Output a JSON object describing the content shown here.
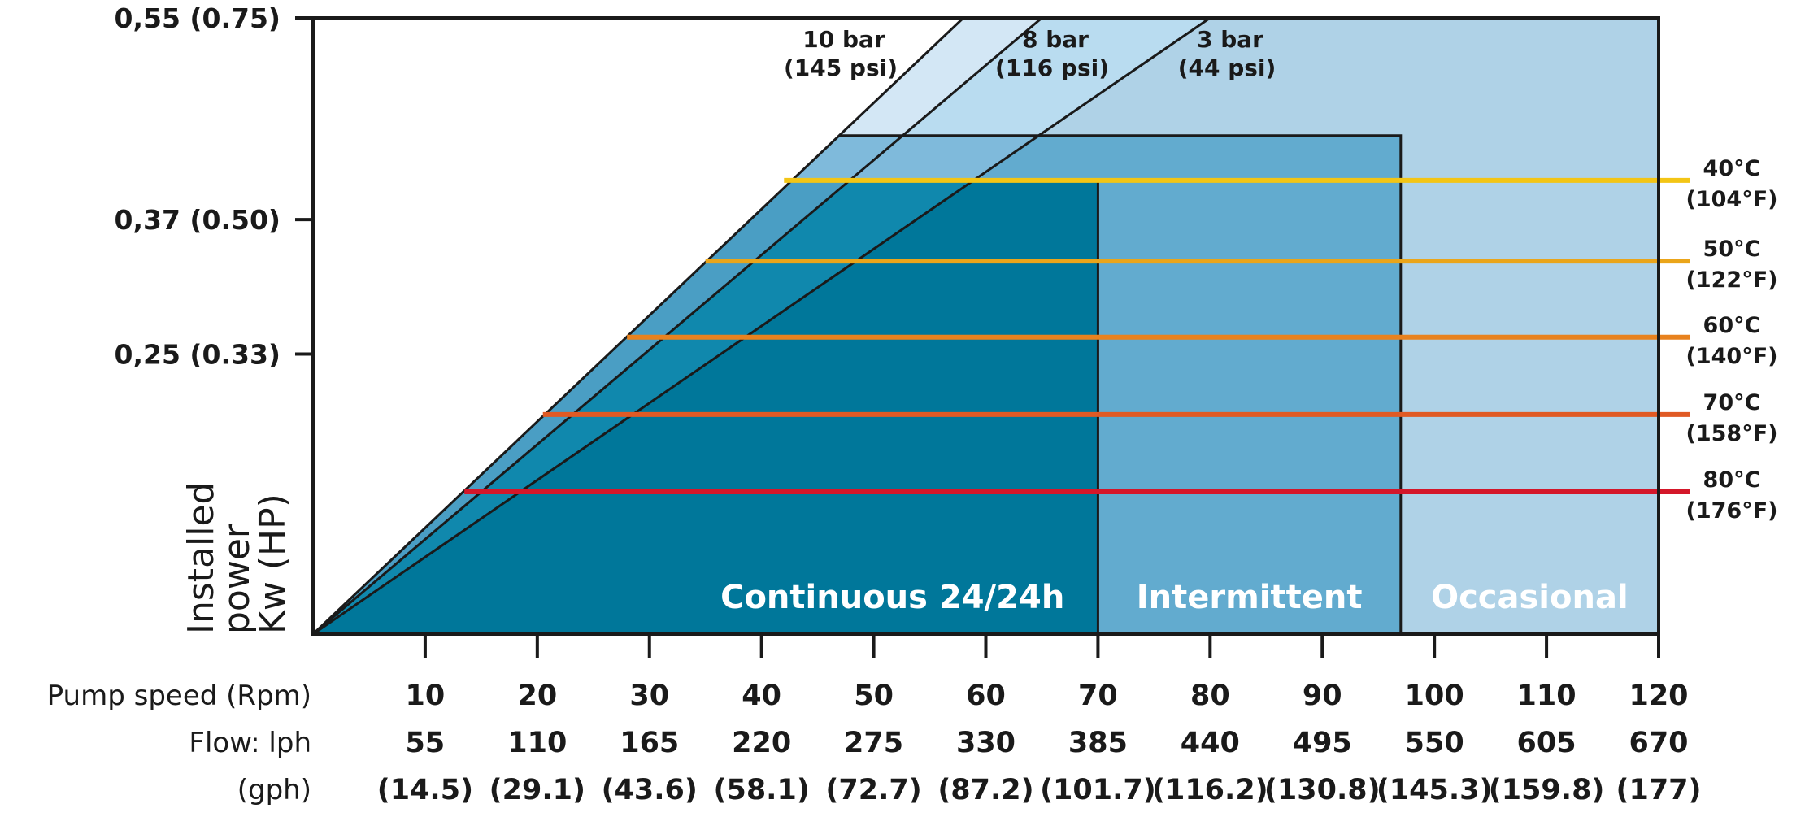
{
  "chart_data": {
    "type": "area",
    "title": "",
    "ylabel_lines": [
      "Installed",
      "power",
      "Kw (HP)"
    ],
    "y_ticks": [
      {
        "value": 0.55,
        "label": "0,55 (0.75)"
      },
      {
        "value": 0.37,
        "label": "0,37 (0.50)"
      },
      {
        "value": 0.25,
        "label": "0,25 (0.33)"
      }
    ],
    "ylim": [
      0,
      0.55
    ],
    "x_rows": [
      {
        "name": "Pump speed (Rpm)",
        "values": [
          "10",
          "20",
          "30",
          "40",
          "50",
          "60",
          "70",
          "80",
          "90",
          "100",
          "110",
          "120"
        ]
      },
      {
        "name": "Flow: lph",
        "values": [
          "55",
          "110",
          "165",
          "220",
          "275",
          "330",
          "385",
          "440",
          "495",
          "550",
          "605",
          "670"
        ]
      },
      {
        "name": "(gph)",
        "values": [
          "(14.5)",
          "(29.1)",
          "(43.6)",
          "(58.1)",
          "(72.7)",
          "(87.2)",
          "(101.7)",
          "(116.2)",
          "(130.8)",
          "(145.3)",
          "(159.8)",
          "(177)"
        ]
      }
    ],
    "xlim": [
      0,
      120
    ],
    "pressure_lines": [
      {
        "bar": "10 bar",
        "psi": "(145 psi)",
        "rpm_at_max": 58
      },
      {
        "bar": "8 bar",
        "psi": "(116 psi)",
        "rpm_at_max": 65
      },
      {
        "bar": "3 bar",
        "psi": "(44 psi)",
        "rpm_at_max": 80
      }
    ],
    "zones": [
      {
        "name": "Continuous 24/24h",
        "rpm_max": 70,
        "power_max": 0.405,
        "color": "#00779a"
      },
      {
        "name": "Intermittent",
        "rpm_max": 97,
        "power_max": 0.445,
        "color": "#62abcf"
      },
      {
        "name": "Occasional",
        "rpm_max": 120,
        "power_max": 0.55,
        "color": "#afd2e7"
      }
    ],
    "temperature_lines": [
      {
        "c": "40°C",
        "f": "(104°F)",
        "power": 0.405,
        "rpm_start": 42,
        "color": "#f3c515"
      },
      {
        "c": "50°C",
        "f": "(122°F)",
        "power": 0.333,
        "rpm_start": 35,
        "color": "#eaa51a"
      },
      {
        "c": "60°C",
        "f": "(140°F)",
        "power": 0.265,
        "rpm_start": 28,
        "color": "#e8821e"
      },
      {
        "c": "70°C",
        "f": "(158°F)",
        "power": 0.196,
        "rpm_start": 20.5,
        "color": "#e05a24"
      },
      {
        "c": "80°C",
        "f": "(176°F)",
        "power": 0.127,
        "rpm_start": 13.5,
        "color": "#d4172a"
      }
    ]
  }
}
